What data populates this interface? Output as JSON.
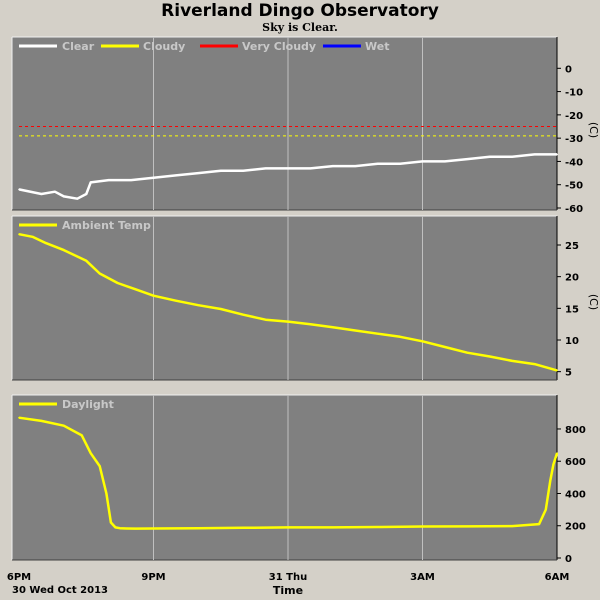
{
  "header": {
    "title": "Riverland Dingo Observatory",
    "subtitle": "Sky is Clear."
  },
  "colors": {
    "background": "#d4d0c8",
    "panel": "#808080",
    "grid": "#c0c0c0",
    "clear": "#ffffff",
    "cloudy": "#ffff00",
    "very_cloudy": "#ff0000",
    "wet": "#0000ff"
  },
  "x_axis": {
    "ticks": [
      {
        "hours": 0,
        "label": "6PM"
      },
      {
        "hours": 3,
        "label": "9PM"
      },
      {
        "hours": 6,
        "label": "31 Thu"
      },
      {
        "hours": 9,
        "label": "3AM"
      },
      {
        "hours": 12,
        "label": "6AM"
      }
    ],
    "date_label": "30 Wed Oct 2013",
    "xlabel": "Time",
    "range": [
      0,
      12
    ]
  },
  "chart_data": [
    {
      "type": "line",
      "panel": "sky",
      "unit": "(C)",
      "ylim": [
        -60,
        7
      ],
      "yticks": [
        0,
        -10,
        -20,
        -30,
        -40,
        -50,
        -60
      ],
      "grid": true,
      "legend_position": "top-left",
      "legend": [
        {
          "label": "Clear",
          "color": "#ffffff"
        },
        {
          "label": "Cloudy",
          "color": "#ffff00"
        },
        {
          "label": "Very Cloudy",
          "color": "#ff0000"
        },
        {
          "label": "Wet",
          "color": "#0000ff"
        }
      ],
      "thresholds": [
        {
          "value": -25,
          "color": "#ff0000"
        },
        {
          "value": -29,
          "color": "#ffff00"
        }
      ],
      "series": [
        {
          "name": "Clear",
          "color": "#ffffff",
          "x": [
            0,
            0.5,
            0.8,
            1.0,
            1.3,
            1.5,
            1.6,
            2.0,
            2.5,
            3.0,
            3.5,
            4.0,
            4.5,
            5.0,
            5.5,
            6.0,
            6.5,
            7.0,
            7.5,
            8.0,
            8.5,
            9.0,
            9.5,
            10.0,
            10.5,
            11.0,
            11.5,
            12.0
          ],
          "y": [
            -52,
            -54,
            -53,
            -55,
            -56,
            -54,
            -49,
            -48,
            -48,
            -47,
            -46,
            -45,
            -44,
            -44,
            -43,
            -43,
            -43,
            -42,
            -42,
            -41,
            -41,
            -40,
            -40,
            -39,
            -38,
            -38,
            -37,
            -37
          ]
        }
      ]
    },
    {
      "type": "line",
      "panel": "ambient",
      "unit": "(C)",
      "ylim": [
        4,
        28
      ],
      "yticks": [
        25,
        20,
        15,
        10,
        5
      ],
      "grid": true,
      "legend_position": "top-left",
      "legend": [
        {
          "label": "Ambient Temp",
          "color": "#ffff00"
        }
      ],
      "series": [
        {
          "name": "Ambient Temp",
          "color": "#ffff00",
          "x": [
            0,
            0.3,
            0.6,
            1.0,
            1.5,
            1.8,
            2.2,
            2.6,
            3.0,
            3.5,
            4.0,
            4.5,
            5.0,
            5.5,
            6.0,
            6.5,
            7.0,
            7.5,
            8.0,
            8.5,
            9.0,
            9.5,
            10.0,
            10.5,
            11.0,
            11.5,
            12.0
          ],
          "y": [
            26.7,
            26.3,
            25.3,
            24.2,
            22.5,
            20.5,
            19.0,
            18.0,
            17.0,
            16.2,
            15.5,
            14.9,
            14.0,
            13.2,
            12.9,
            12.5,
            12.0,
            11.5,
            11.0,
            10.5,
            9.8,
            8.9,
            8.0,
            7.4,
            6.7,
            6.2,
            5.2
          ]
        }
      ]
    },
    {
      "type": "line",
      "panel": "daylight",
      "unit": "",
      "ylim": [
        0,
        930
      ],
      "yticks": [
        800,
        600,
        400,
        200,
        0
      ],
      "grid": true,
      "legend_position": "top-left",
      "legend": [
        {
          "label": "Daylight",
          "color": "#ffff00"
        }
      ],
      "series": [
        {
          "name": "Daylight",
          "color": "#ffff00",
          "x": [
            0,
            0.5,
            1.0,
            1.4,
            1.6,
            1.8,
            1.95,
            2.05,
            2.15,
            2.25,
            2.4,
            2.6,
            3.0,
            4.0,
            5.0,
            6.0,
            7.0,
            8.0,
            9.0,
            10.0,
            11.0,
            11.6,
            11.75,
            11.85,
            11.92,
            12.0
          ],
          "y": [
            870,
            850,
            820,
            760,
            650,
            570,
            400,
            220,
            190,
            185,
            183,
            182,
            183,
            185,
            187,
            190,
            190,
            192,
            195,
            196,
            198,
            210,
            300,
            480,
            580,
            650
          ]
        }
      ]
    }
  ]
}
